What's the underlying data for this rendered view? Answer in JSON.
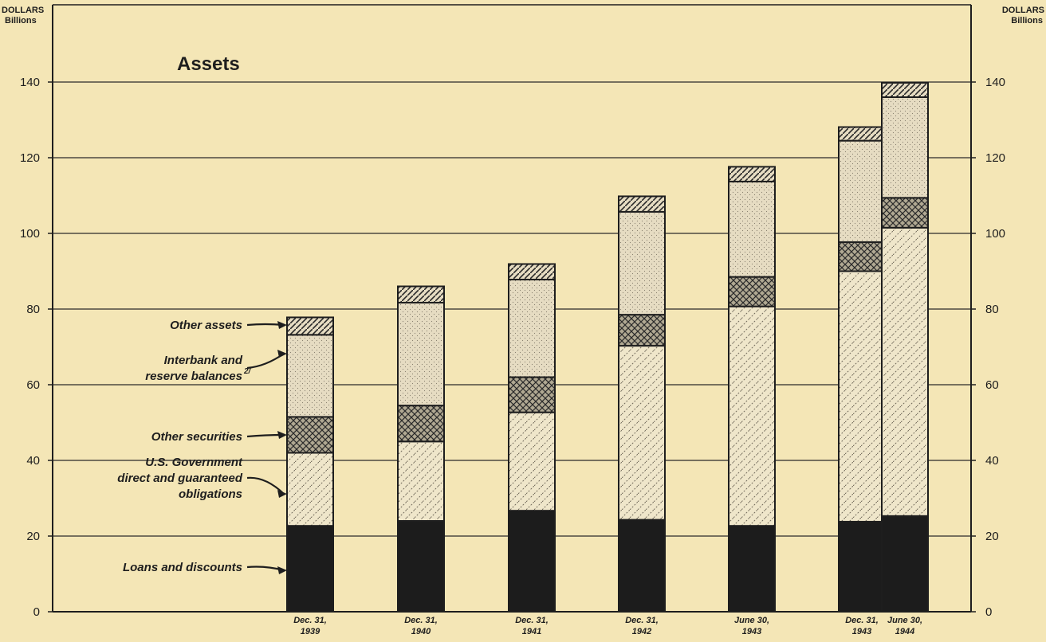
{
  "chart_data": {
    "type": "bar",
    "stacked": true,
    "title": "Assets",
    "y_axis_left": {
      "unit_line1": "DOLLARS",
      "unit_line2": "Billions"
    },
    "y_axis_right": {
      "unit_line1": "DOLLARS",
      "unit_line2": "Billions"
    },
    "ylim": [
      0,
      150
    ],
    "yticks": [
      0,
      20,
      40,
      60,
      80,
      100,
      120,
      140
    ],
    "grid": true,
    "categories": [
      {
        "line1": "Dec. 31,",
        "line2": "1939"
      },
      {
        "line1": "Dec. 31,",
        "line2": "1940"
      },
      {
        "line1": "Dec. 31,",
        "line2": "1941"
      },
      {
        "line1": "Dec. 31,",
        "line2": "1942"
      },
      {
        "line1": "June 30,",
        "line2": "1943"
      },
      {
        "line1": "Dec. 31,",
        "line2": "1943"
      },
      {
        "line1": "June 30,",
        "line2": "1944"
      }
    ],
    "series": [
      {
        "name": "Loans and discounts",
        "values": [
          22.7,
          24,
          26.7,
          24.3,
          22.7,
          23.8,
          25.3
        ],
        "color": "#1c1c1c"
      },
      {
        "name": "U.S. Government direct and guaranteed obligations",
        "values": [
          19.3,
          21,
          26,
          46,
          58,
          66.2,
          76.2
        ],
        "color": "#ece2c4"
      },
      {
        "name": "Other securities",
        "values": [
          9.5,
          9.5,
          9.3,
          8.2,
          7.8,
          7.7,
          7.9
        ],
        "color": "#6e6658"
      },
      {
        "name": "Interbank and reserve balances",
        "values": [
          21.7,
          27.2,
          25.8,
          27.2,
          25.2,
          26.8,
          26.6
        ],
        "color": "#e0d6be"
      },
      {
        "name": "Other assets",
        "values": [
          4.6,
          4.3,
          4.1,
          4.1,
          3.9,
          3.6,
          3.8
        ],
        "color": "#8c8474"
      }
    ],
    "legend_labels": [
      {
        "series": 4,
        "lines": [
          "Other assets"
        ]
      },
      {
        "series": 3,
        "lines": [
          "Interbank and",
          "reserve balances"
        ],
        "footnote": "2/"
      },
      {
        "series": 2,
        "lines": [
          "Other securities"
        ]
      },
      {
        "series": 1,
        "lines": [
          "U.S. Government",
          "direct and guaranteed",
          "obligations"
        ]
      },
      {
        "series": 0,
        "lines": [
          "Loans and discounts"
        ]
      }
    ]
  }
}
